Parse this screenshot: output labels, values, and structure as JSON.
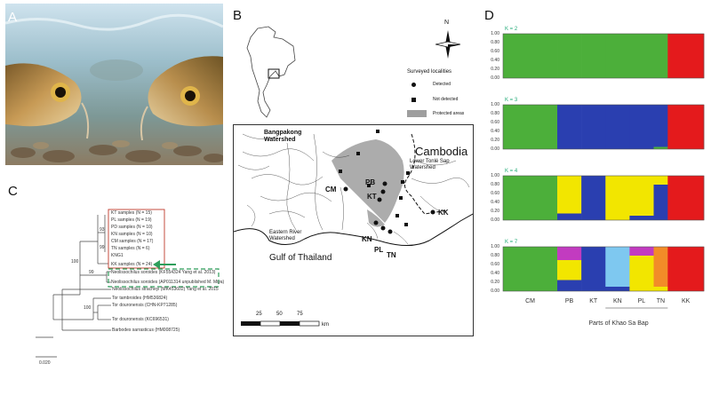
{
  "panels": {
    "a": "A",
    "b": "B",
    "c": "C",
    "d": "D"
  },
  "tree": {
    "box_items": [
      "KT samples (N = 15)",
      "PL samples (N = 19)",
      "PD samples (N = 10)",
      "KN samples (N = 10)",
      "CM samples (N = 17)",
      "TN samples (N = 6)",
      "KNG1",
      "KK samples (N = 24)"
    ],
    "dashed_items": [
      "Neolissochilus soroides (KF554324 Yang et al. 2013)",
      "Neolissochilus soroides (AP011314 unpublished M. Miya)"
    ],
    "outgroups": [
      "Neolissochilus stracheyi (MK453602) Yang et al. 2015",
      "Tor tambroides (HM536824)",
      "Tor douronensis (CHN-KP71285)",
      "Tor douronensis (KC696531)",
      "Barbodes sarrasticus (HM008725)"
    ],
    "bootstrap": {
      "b1": "93",
      "b2": "99",
      "b3": "100",
      "b4": "99",
      "b5": "100"
    },
    "scale": "0.020"
  },
  "map": {
    "title": "Surveyed localities",
    "legend": {
      "detected": "Detected",
      "not_detected": "Not detected",
      "protected": "Protected areas"
    },
    "compass": "N",
    "labels": {
      "sangpakong": "Bangpakong Watershed",
      "cambodia": "Cambodia",
      "lower_tonle": "Lower Tonlé Sap Watershed",
      "eastern": "Eastern River Watershed",
      "gulf": "Gulf of Thailand",
      "cm": "CM",
      "pb": "PB",
      "kt": "KT",
      "kn": "KN",
      "pl": "PL",
      "tn": "TN",
      "kk": "KK"
    },
    "scalebar": {
      "t1": "25",
      "t2": "50",
      "t3": "75",
      "unit": "km"
    }
  },
  "chart_data": {
    "type": "bar",
    "title": "",
    "stacked": true,
    "ylim": [
      0,
      1
    ],
    "yticks": [
      "1.00",
      "0.80",
      "0.60",
      "0.40",
      "0.20",
      "0.00"
    ],
    "populations": [
      "CM",
      "PB",
      "KT",
      "KN",
      "PL",
      "TN",
      "KK"
    ],
    "group_label": "Parts of Khao Sa Bap",
    "colors": {
      "green": "#4caf3a",
      "blue": "#2a3fb0",
      "red": "#e41a1c",
      "yellow": "#f2e600",
      "magenta": "#c23bc0",
      "lightblue": "#7ec8f0",
      "orange": "#f28c28"
    },
    "rows": [
      {
        "k": "K = 2",
        "segments": [
          {
            "pop": "CM",
            "fracs": {
              "green": 1.0
            }
          },
          {
            "pop": "PB",
            "fracs": {
              "green": 1.0
            }
          },
          {
            "pop": "KT",
            "fracs": {
              "green": 1.0
            }
          },
          {
            "pop": "KN",
            "fracs": {
              "green": 1.0
            }
          },
          {
            "pop": "PL",
            "fracs": {
              "green": 1.0
            }
          },
          {
            "pop": "TN",
            "fracs": {
              "green": 1.0
            }
          },
          {
            "pop": "KK",
            "fracs": {
              "red": 1.0
            }
          }
        ]
      },
      {
        "k": "K = 3",
        "segments": [
          {
            "pop": "CM",
            "fracs": {
              "green": 1.0
            }
          },
          {
            "pop": "PB",
            "fracs": {
              "blue": 1.0
            }
          },
          {
            "pop": "KT",
            "fracs": {
              "blue": 1.0
            }
          },
          {
            "pop": "KN",
            "fracs": {
              "blue": 1.0
            }
          },
          {
            "pop": "PL",
            "fracs": {
              "blue": 1.0
            }
          },
          {
            "pop": "TN",
            "fracs": {
              "blue": 0.95,
              "green": 0.05
            }
          },
          {
            "pop": "KK",
            "fracs": {
              "red": 1.0
            }
          }
        ]
      },
      {
        "k": "K = 4",
        "segments": [
          {
            "pop": "CM",
            "fracs": {
              "green": 1.0
            }
          },
          {
            "pop": "PB",
            "fracs": {
              "yellow": 0.85,
              "blue": 0.15
            }
          },
          {
            "pop": "KT",
            "fracs": {
              "blue": 1.0
            }
          },
          {
            "pop": "KN",
            "fracs": {
              "yellow": 1.0
            }
          },
          {
            "pop": "PL",
            "fracs": {
              "yellow": 0.9,
              "blue": 0.1
            }
          },
          {
            "pop": "TN",
            "fracs": {
              "blue": 0.8,
              "yellow": 0.2
            }
          },
          {
            "pop": "KK",
            "fracs": {
              "red": 1.0
            }
          }
        ]
      },
      {
        "k": "K = 7",
        "segments": [
          {
            "pop": "CM",
            "fracs": {
              "green": 1.0
            }
          },
          {
            "pop": "PB",
            "fracs": {
              "yellow": 0.45,
              "magenta": 0.3,
              "blue": 0.25
            }
          },
          {
            "pop": "KT",
            "fracs": {
              "blue": 1.0
            }
          },
          {
            "pop": "KN",
            "fracs": {
              "lightblue": 0.9,
              "blue": 0.1
            }
          },
          {
            "pop": "PL",
            "fracs": {
              "yellow": 0.8,
              "magenta": 0.2
            }
          },
          {
            "pop": "TN",
            "fracs": {
              "orange": 0.9,
              "yellow": 0.1
            }
          },
          {
            "pop": "KK",
            "fracs": {
              "red": 1.0
            }
          }
        ]
      }
    ],
    "pop_widths": [
      0.27,
      0.12,
      0.12,
      0.12,
      0.12,
      0.07,
      0.18
    ]
  }
}
